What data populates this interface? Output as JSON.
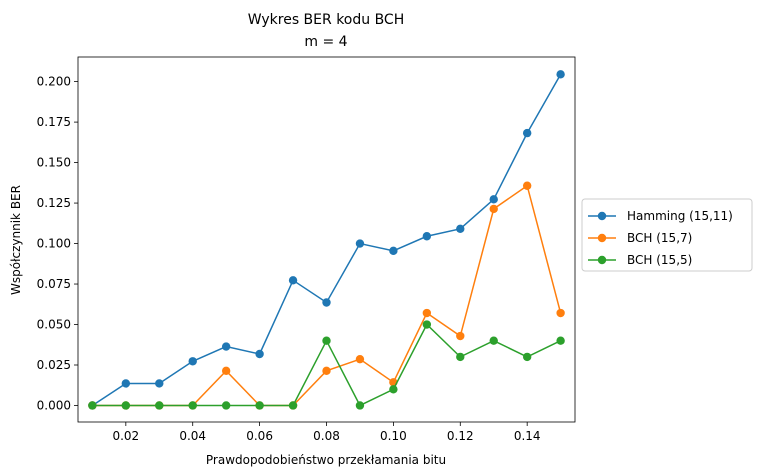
{
  "chart_data": {
    "type": "line",
    "title": "Wykres BER kodu BCH",
    "subtitle": "m = 4",
    "xlabel": "Prawdopodobieństwo przekłamania bitu",
    "ylabel": "Współczynnik BER",
    "x": [
      0.01,
      0.02,
      0.03,
      0.04,
      0.05,
      0.06,
      0.07,
      0.08,
      0.09,
      0.1,
      0.11,
      0.12,
      0.13,
      0.14,
      0.15
    ],
    "xlim": [
      0.0057,
      0.1543
    ],
    "ylim": [
      -0.0102,
      0.2152
    ],
    "xticks": [
      0.02,
      0.04,
      0.06,
      0.08,
      0.1,
      0.12,
      0.14
    ],
    "xtick_labels": [
      "0.02",
      "0.04",
      "0.06",
      "0.08",
      "0.10",
      "0.12",
      "0.14"
    ],
    "yticks": [
      0.0,
      0.025,
      0.05,
      0.075,
      0.1,
      0.125,
      0.15,
      0.175,
      0.2
    ],
    "ytick_labels": [
      "0.000",
      "0.025",
      "0.050",
      "0.075",
      "0.100",
      "0.125",
      "0.150",
      "0.175",
      "0.200"
    ],
    "grid": false,
    "legend_position": "outside-right",
    "series": [
      {
        "name": "Hamming (15,11)",
        "color": "#1f77b4",
        "values": [
          0.0,
          0.0136,
          0.0136,
          0.0273,
          0.0364,
          0.0318,
          0.0773,
          0.0636,
          0.1,
          0.0955,
          0.1045,
          0.1091,
          0.1273,
          0.1682,
          0.2045
        ]
      },
      {
        "name": "BCH (15,7)",
        "color": "#ff7f0e",
        "values": [
          0.0,
          0.0,
          0.0,
          0.0,
          0.0214,
          0.0,
          0.0,
          0.0214,
          0.0286,
          0.0143,
          0.0571,
          0.0429,
          0.1214,
          0.1357,
          0.0571
        ]
      },
      {
        "name": "BCH (15,5)",
        "color": "#2ca02c",
        "values": [
          0.0,
          0.0,
          0.0,
          0.0,
          0.0,
          0.0,
          0.0,
          0.04,
          0.0,
          0.01,
          0.05,
          0.03,
          0.04,
          0.03,
          0.04
        ]
      }
    ]
  }
}
